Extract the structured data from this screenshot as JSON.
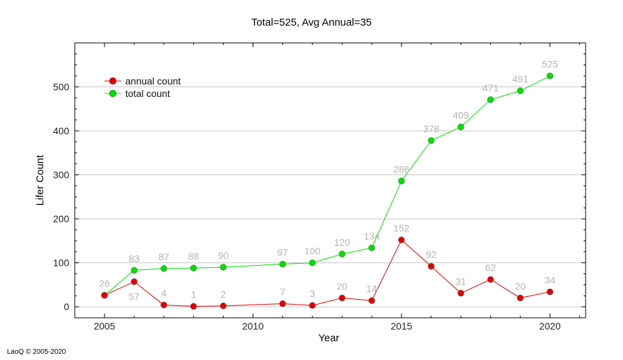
{
  "chart_data": {
    "type": "line",
    "title": "Total=525, Avg Annual=35",
    "xlabel": "Year",
    "ylabel": "Lifer Count",
    "credit": "LaoQ © 2005-2020",
    "xlim": [
      2004,
      2021.2
    ],
    "ylim": [
      -25,
      600
    ],
    "xticks": [
      2005,
      2010,
      2015,
      2020
    ],
    "yticks": [
      0,
      100,
      200,
      300,
      400,
      500
    ],
    "grid": "horizontal",
    "legend_position": "top-left",
    "series": [
      {
        "name": "annual count",
        "color": "#e00000",
        "x": [
          2005,
          2006,
          2007,
          2008,
          2009,
          2011,
          2012,
          2013,
          2014,
          2015,
          2016,
          2017,
          2018,
          2019,
          2020
        ],
        "y": [
          26,
          57,
          4,
          1,
          2,
          7,
          3,
          20,
          14,
          152,
          92,
          31,
          62,
          20,
          34
        ],
        "labels": [
          "26",
          "57",
          "4",
          "1",
          "2",
          "7",
          "3",
          "20",
          "14",
          "152",
          "92",
          "31",
          "62",
          "20",
          "34"
        ]
      },
      {
        "name": "total count",
        "color": "#00e000",
        "x": [
          2005,
          2006,
          2007,
          2008,
          2009,
          2011,
          2012,
          2013,
          2014,
          2015,
          2016,
          2017,
          2018,
          2019,
          2020
        ],
        "y": [
          26,
          83,
          87,
          88,
          90,
          97,
          100,
          120,
          134,
          286,
          378,
          409,
          471,
          491,
          525
        ],
        "labels": [
          "",
          "83",
          "87",
          "88",
          "90",
          "97",
          "100",
          "120",
          "134",
          "286",
          "378",
          "409",
          "471",
          "491",
          "525"
        ]
      }
    ]
  }
}
